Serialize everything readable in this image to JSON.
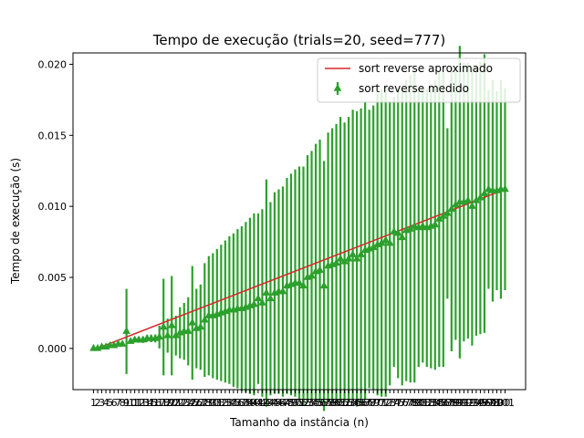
{
  "chart_data": {
    "type": "line",
    "title": "Tempo de execução (trials=20, seed=777)",
    "xlabel": "Tamanho da instância (n)",
    "ylabel": "Tempo de execução (s)",
    "ylim": [
      -0.0029,
      0.0208
    ],
    "yticks": [
      0.0,
      0.005,
      0.01,
      0.015,
      0.02
    ],
    "ytick_labels": [
      "0.000",
      "0.005",
      "0.010",
      "0.015",
      "0.020"
    ],
    "grid": false,
    "legend_position": "top-right",
    "x": [
      1,
      2,
      3,
      4,
      5,
      6,
      7,
      8,
      9,
      10,
      11,
      12,
      13,
      14,
      15,
      16,
      17,
      18,
      19,
      20,
      21,
      22,
      23,
      24,
      25,
      26,
      27,
      28,
      29,
      30,
      31,
      32,
      33,
      34,
      35,
      36,
      37,
      38,
      39,
      40,
      41,
      42,
      43,
      44,
      45,
      46,
      47,
      48,
      49,
      50,
      51,
      52,
      53,
      54,
      55,
      56,
      57,
      58,
      59,
      60,
      61,
      62,
      63,
      64,
      65,
      66,
      67,
      68,
      69,
      70,
      71,
      72,
      73,
      74,
      75,
      76,
      77,
      78,
      79,
      80,
      81,
      82,
      83,
      84,
      85,
      86,
      87,
      88,
      89,
      90,
      91,
      92,
      93,
      94,
      95,
      96,
      97,
      98,
      99,
      100,
      101
    ],
    "xtick_labels": [
      "1",
      "2",
      "3",
      "4",
      "5",
      "6",
      "7",
      "8",
      "9",
      "10",
      "11",
      "12",
      "13",
      "14",
      "15",
      "16",
      "17",
      "18",
      "19",
      "20",
      "21",
      "22",
      "23",
      "24",
      "25",
      "26",
      "27",
      "28",
      "29",
      "30",
      "31",
      "32",
      "33",
      "34",
      "35",
      "36",
      "37",
      "38",
      "39",
      "40",
      "41",
      "42",
      "43",
      "44",
      "45",
      "46",
      "47",
      "48",
      "49",
      "50",
      "51",
      "52",
      "53",
      "54",
      "55",
      "56",
      "57",
      "58",
      "59",
      "60",
      "61",
      "62",
      "63",
      "64",
      "65",
      "66",
      "67",
      "68",
      "69",
      "70",
      "71",
      "72",
      "73",
      "74",
      "75",
      "76",
      "77",
      "78",
      "79",
      "80",
      "81",
      "82",
      "83",
      "84",
      "85",
      "86",
      "87",
      "88",
      "89",
      "90",
      "91",
      "92",
      "93",
      "94",
      "95",
      "96",
      "97",
      "98",
      "99",
      "100",
      "101"
    ],
    "series": [
      {
        "name": "sort reverse aproximado",
        "kind": "line",
        "color": "#d62728",
        "x": [
          1,
          101
        ],
        "y": [
          -0.0001,
          0.0112
        ]
      },
      {
        "name": "sort reverse medido",
        "kind": "errorbar",
        "color": "#2ca02c",
        "marker": "triangle-up",
        "y": [
          0.0,
          0.0,
          0.0001,
          0.0001,
          0.0002,
          0.0002,
          0.0003,
          0.0003,
          0.0012,
          0.0005,
          0.0006,
          0.0006,
          0.0006,
          0.0007,
          0.0007,
          0.0007,
          0.0008,
          0.0015,
          0.0009,
          0.0016,
          0.0009,
          0.0011,
          0.0012,
          0.0012,
          0.0018,
          0.0014,
          0.0015,
          0.002,
          0.0023,
          0.0023,
          0.0024,
          0.0025,
          0.0026,
          0.0027,
          0.0027,
          0.0028,
          0.0028,
          0.0029,
          0.003,
          0.0031,
          0.0035,
          0.0032,
          0.0039,
          0.0035,
          0.0039,
          0.004,
          0.004,
          0.0044,
          0.0045,
          0.0046,
          0.0046,
          0.0044,
          0.005,
          0.0051,
          0.0054,
          0.0055,
          0.0044,
          0.0058,
          0.0059,
          0.006,
          0.0063,
          0.0061,
          0.0063,
          0.0066,
          0.0063,
          0.0066,
          0.0069,
          0.007,
          0.0071,
          0.0073,
          0.0074,
          0.0076,
          0.0074,
          0.0082,
          0.0081,
          0.0078,
          0.0083,
          0.0084,
          0.0086,
          0.0085,
          0.0086,
          0.0085,
          0.0086,
          0.0087,
          0.0091,
          0.0093,
          0.0095,
          0.0098,
          0.0101,
          0.0103,
          0.0103,
          0.0104,
          0.01,
          0.0104,
          0.0106,
          0.0109,
          0.0112,
          0.0111,
          0.0111,
          0.0112,
          0.0112
        ],
        "err": [
          3e-05,
          4e-05,
          5e-05,
          6e-05,
          7e-05,
          8e-05,
          0.0001,
          0.00012,
          0.003,
          0.00016,
          0.00018,
          0.0002,
          0.00022,
          0.00024,
          0.00026,
          0.00028,
          0.0008,
          0.0034,
          0.0012,
          0.0035,
          0.0014,
          0.0018,
          0.002,
          0.0024,
          0.004,
          0.0028,
          0.003,
          0.004,
          0.0042,
          0.0044,
          0.0046,
          0.0048,
          0.005,
          0.0052,
          0.0054,
          0.0056,
          0.0058,
          0.006,
          0.0062,
          0.0064,
          0.006,
          0.0066,
          0.008,
          0.0068,
          0.0071,
          0.0072,
          0.0074,
          0.0076,
          0.0078,
          0.008,
          0.0082,
          0.0084,
          0.0086,
          0.0088,
          0.009,
          0.0092,
          0.0088,
          0.0094,
          0.0096,
          0.0098,
          0.01,
          0.0098,
          0.01,
          0.0102,
          0.0104,
          0.0103,
          0.0105,
          0.0098,
          0.01,
          0.0106,
          0.0108,
          0.011,
          0.01,
          0.0095,
          0.0102,
          0.0104,
          0.0106,
          0.0108,
          0.011,
          0.0098,
          0.0096,
          0.0098,
          0.01,
          0.0102,
          0.0104,
          0.0106,
          0.006,
          0.01,
          0.0095,
          0.011,
          0.0098,
          0.0097,
          0.0098,
          0.0095,
          0.0096,
          0.0098,
          0.007,
          0.0078,
          0.007,
          0.0077,
          0.0071
        ]
      }
    ]
  }
}
